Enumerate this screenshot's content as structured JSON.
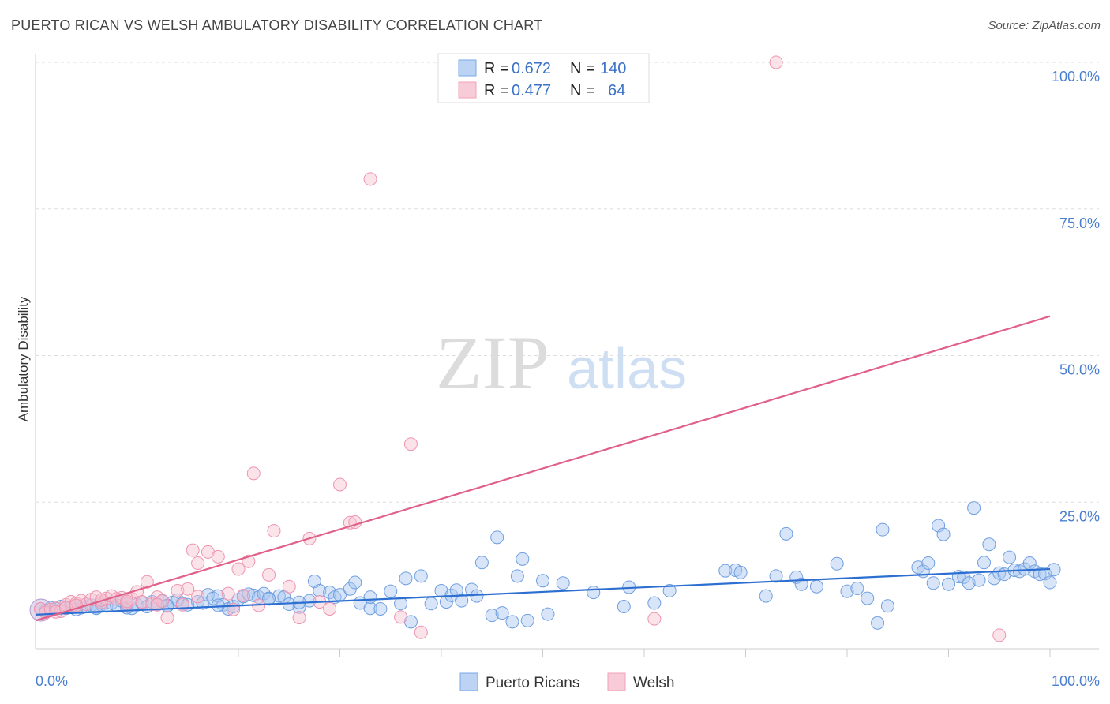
{
  "title": "PUERTO RICAN VS WELSH AMBULATORY DISABILITY CORRELATION CHART",
  "source": "Source: ZipAtlas.com",
  "watermark": {
    "zip": "ZIP",
    "atlas": "atlas"
  },
  "colors": {
    "puerto_ricans": "#7aaae8",
    "welsh": "#f2a0b8",
    "pr_line": "#2c6fd0",
    "welsh_line": "#e0608a",
    "axis_text": "#4a7fd0"
  },
  "legend": {
    "rows": [
      {
        "r_label": "R =",
        "r_value": "0.672",
        "n_label": "N =",
        "n_value": "140"
      },
      {
        "r_label": "R =",
        "r_value": "0.477",
        "n_label": "N =",
        "n_value": "64"
      }
    ]
  },
  "chart_data": {
    "type": "scatter",
    "ylabel": "Ambulatory Disability",
    "x_tick_labels": [
      "0.0%",
      "100.0%"
    ],
    "y_tick_labels": [
      "25.0%",
      "50.0%",
      "75.0%",
      "100.0%"
    ],
    "x_range": [
      0,
      100
    ],
    "y_range": [
      0,
      100
    ],
    "grid": true,
    "legend_position": "top-center",
    "series": [
      {
        "name": "Puerto Ricans",
        "color": "#7aaae8",
        "trend": {
          "x": [
            0,
            100
          ],
          "y": [
            5.8,
            13.6
          ]
        },
        "points": [
          [
            0.5,
            6.8
          ],
          [
            1,
            6.5
          ],
          [
            1.5,
            7.0
          ],
          [
            2,
            6.8
          ],
          [
            2.5,
            7.2
          ],
          [
            3,
            6.9
          ],
          [
            3.5,
            7.1
          ],
          [
            4,
            7.3
          ],
          [
            4.5,
            7.0
          ],
          [
            5,
            7.2
          ],
          [
            5.5,
            7.4
          ],
          [
            6,
            7.1
          ],
          [
            6.5,
            7.5
          ],
          [
            7,
            7.3
          ],
          [
            7.5,
            7.8
          ],
          [
            8,
            7.4
          ],
          [
            8.5,
            8.2
          ],
          [
            9,
            7.6
          ],
          [
            9.5,
            6.9
          ],
          [
            10,
            7.5
          ],
          [
            10.5,
            7.8
          ],
          [
            11,
            7.2
          ],
          [
            11.5,
            8.0
          ],
          [
            12,
            7.6
          ],
          [
            12.5,
            8.1
          ],
          [
            13,
            7.4
          ],
          [
            13.5,
            7.9
          ],
          [
            14,
            8.3
          ],
          [
            14.5,
            7.7
          ],
          [
            15,
            7.5
          ],
          [
            16,
            8.0
          ],
          [
            16.5,
            7.8
          ],
          [
            17,
            9.2
          ],
          [
            17.5,
            8.6
          ],
          [
            18,
            9.0
          ],
          [
            18.5,
            7.5
          ],
          [
            19,
            6.8
          ],
          [
            19.5,
            7.2
          ],
          [
            20,
            8.4
          ],
          [
            20.5,
            8.9
          ],
          [
            21,
            9.3
          ],
          [
            21.5,
            9.1
          ],
          [
            22,
            8.8
          ],
          [
            22.5,
            9.4
          ],
          [
            23,
            8.6
          ],
          [
            24,
            9.0
          ],
          [
            24.5,
            8.8
          ],
          [
            25,
            7.6
          ],
          [
            26,
            7.1
          ],
          [
            27,
            8.2
          ],
          [
            27.5,
            11.5
          ],
          [
            28,
            9.9
          ],
          [
            29,
            9.6
          ],
          [
            29.5,
            8.8
          ],
          [
            30,
            9.2
          ],
          [
            31,
            10.2
          ],
          [
            31.5,
            11.3
          ],
          [
            32,
            7.8
          ],
          [
            33,
            6.9
          ],
          [
            34,
            6.8
          ],
          [
            35,
            9.8
          ],
          [
            36,
            7.7
          ],
          [
            37,
            4.6
          ],
          [
            38,
            12.4
          ],
          [
            39,
            7.7
          ],
          [
            40,
            9.9
          ],
          [
            40.5,
            8.0
          ],
          [
            41,
            9.1
          ],
          [
            41.5,
            10.0
          ],
          [
            42,
            8.2
          ],
          [
            43,
            10.1
          ],
          [
            44,
            14.7
          ],
          [
            45,
            5.7
          ],
          [
            45.5,
            19.0
          ],
          [
            46,
            6.1
          ],
          [
            47,
            4.6
          ],
          [
            47.5,
            12.4
          ],
          [
            48,
            15.3
          ],
          [
            48.5,
            4.8
          ],
          [
            50,
            11.6
          ],
          [
            50.5,
            5.9
          ],
          [
            52,
            11.2
          ],
          [
            58,
            7.2
          ],
          [
            58.5,
            10.5
          ],
          [
            61,
            7.8
          ],
          [
            68,
            13.3
          ],
          [
            69,
            13.4
          ],
          [
            69.5,
            13.0
          ],
          [
            72,
            9.0
          ],
          [
            73,
            12.4
          ],
          [
            74,
            19.6
          ],
          [
            75,
            12.2
          ],
          [
            75.5,
            11.0
          ],
          [
            77,
            10.6
          ],
          [
            79,
            14.5
          ],
          [
            80,
            9.8
          ],
          [
            81,
            10.3
          ],
          [
            82,
            8.6
          ],
          [
            83,
            4.4
          ],
          [
            83.5,
            20.3
          ],
          [
            84,
            7.3
          ],
          [
            87,
            13.9
          ],
          [
            87.5,
            13.2
          ],
          [
            88,
            14.6
          ],
          [
            88.5,
            11.2
          ],
          [
            89,
            21.0
          ],
          [
            89.5,
            19.5
          ],
          [
            90,
            11.0
          ],
          [
            91,
            12.3
          ],
          [
            91.5,
            12.2
          ],
          [
            92,
            11.2
          ],
          [
            92.5,
            24.0
          ],
          [
            93,
            11.7
          ],
          [
            93.5,
            14.7
          ],
          [
            94,
            17.8
          ],
          [
            94.5,
            12.0
          ],
          [
            95,
            12.9
          ],
          [
            95.5,
            12.7
          ],
          [
            96,
            15.6
          ],
          [
            96.5,
            13.4
          ],
          [
            97,
            13.2
          ],
          [
            97.5,
            13.6
          ],
          [
            98,
            14.6
          ],
          [
            98.5,
            13.2
          ],
          [
            99,
            12.7
          ],
          [
            99.5,
            12.8
          ],
          [
            100,
            11.3
          ],
          [
            100.5,
            13.5
          ],
          [
            4,
            6.7
          ],
          [
            6,
            6.9
          ],
          [
            9,
            7.0
          ],
          [
            13,
            7.3
          ],
          [
            18,
            7.4
          ],
          [
            23,
            8.5
          ],
          [
            26,
            7.9
          ],
          [
            33,
            8.8
          ],
          [
            36.5,
            12.0
          ],
          [
            43.5,
            9.0
          ],
          [
            55,
            9.6
          ],
          [
            62.5,
            9.9
          ]
        ]
      },
      {
        "name": "Welsh",
        "color": "#f2a0b8",
        "trend": {
          "x": [
            0,
            100
          ],
          "y": [
            4.8,
            56.7
          ]
        },
        "points": [
          [
            0.5,
            6.8
          ],
          [
            1,
            6.2
          ],
          [
            1.5,
            6.7
          ],
          [
            2,
            6.9
          ],
          [
            2.5,
            6.4
          ],
          [
            3,
            7.5
          ],
          [
            3.5,
            8.0
          ],
          [
            4,
            7.7
          ],
          [
            4.5,
            8.2
          ],
          [
            5,
            7.6
          ],
          [
            5.5,
            8.4
          ],
          [
            6,
            8.8
          ],
          [
            6.5,
            7.9
          ],
          [
            7,
            8.6
          ],
          [
            7.5,
            9.0
          ],
          [
            8,
            8.5
          ],
          [
            8.5,
            8.7
          ],
          [
            9,
            7.8
          ],
          [
            9.5,
            8.5
          ],
          [
            10,
            9.7
          ],
          [
            10.5,
            8.0
          ],
          [
            11,
            11.4
          ],
          [
            11.5,
            7.6
          ],
          [
            12,
            8.8
          ],
          [
            12.5,
            8.2
          ],
          [
            13,
            5.3
          ],
          [
            14,
            9.9
          ],
          [
            14.5,
            7.5
          ],
          [
            15,
            10.2
          ],
          [
            15.5,
            16.8
          ],
          [
            16,
            14.6
          ],
          [
            17,
            16.5
          ],
          [
            18,
            15.7
          ],
          [
            19,
            9.4
          ],
          [
            19.5,
            6.7
          ],
          [
            20,
            13.6
          ],
          [
            20.5,
            9.1
          ],
          [
            21,
            14.9
          ],
          [
            21.5,
            29.9
          ],
          [
            22,
            7.4
          ],
          [
            23,
            12.6
          ],
          [
            23.5,
            20.1
          ],
          [
            25,
            10.6
          ],
          [
            26,
            5.3
          ],
          [
            27,
            18.8
          ],
          [
            28,
            8.0
          ],
          [
            29,
            6.8
          ],
          [
            30,
            28.0
          ],
          [
            31,
            21.5
          ],
          [
            31.5,
            21.6
          ],
          [
            33,
            80.1
          ],
          [
            36,
            5.4
          ],
          [
            37,
            34.9
          ],
          [
            38,
            2.8
          ],
          [
            61,
            5.1
          ],
          [
            73,
            100.0
          ],
          [
            95,
            2.3
          ],
          [
            2,
            6.3
          ],
          [
            3,
            7.0
          ],
          [
            4,
            7.4
          ],
          [
            6.5,
            8.3
          ],
          [
            9,
            8.1
          ],
          [
            12,
            7.5
          ],
          [
            16,
            8.9
          ]
        ]
      }
    ]
  }
}
